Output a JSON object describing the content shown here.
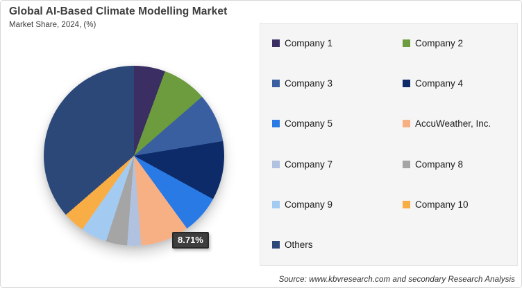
{
  "header": {
    "title": "Global AI-Based Climate Modelling Market",
    "subtitle": "Market Share, 2024, (%)"
  },
  "callout": {
    "label": "8.71%",
    "attached_to": "AccuWeather, Inc."
  },
  "footer": {
    "source": "Source: www.kbvresearch.com and secondary Research Analysis"
  },
  "chart_data": {
    "type": "pie",
    "title": "Global AI-Based Climate Modelling Market",
    "subtitle": "Market Share, 2024, (%)",
    "unit": "percent",
    "start_angle_deg": 0,
    "direction": "clockwise",
    "legend_position": "right",
    "data_labels_shown": [
      "AccuWeather, Inc."
    ],
    "slices": [
      {
        "label": "Company 1",
        "value": 5.6,
        "color": "#3a2e63",
        "estimated": true
      },
      {
        "label": "Company 2",
        "value": 8.0,
        "color": "#6d9c3e",
        "estimated": true
      },
      {
        "label": "Company 3",
        "value": 8.8,
        "color": "#3a5fa0",
        "estimated": true
      },
      {
        "label": "Company 4",
        "value": 10.6,
        "color": "#0d2b68",
        "estimated": true
      },
      {
        "label": "Company 5",
        "value": 7.0,
        "color": "#2a7ae6",
        "estimated": true
      },
      {
        "label": "AccuWeather, Inc.",
        "value": 8.71,
        "color": "#f7b083",
        "estimated": false
      },
      {
        "label": "Company 7",
        "value": 2.5,
        "color": "#b1c2e1",
        "estimated": true
      },
      {
        "label": "Company 8",
        "value": 3.8,
        "color": "#a5a5a5",
        "estimated": true
      },
      {
        "label": "Company 9",
        "value": 4.7,
        "color": "#a3cbf2",
        "estimated": true
      },
      {
        "label": "Company 10",
        "value": 3.9,
        "color": "#f9ae45",
        "estimated": true
      },
      {
        "label": "Others",
        "value": 36.39,
        "color": "#2c4879",
        "estimated": true
      }
    ],
    "callout_color": "#3e3e3e",
    "panel_background": "#f5f5f5"
  }
}
